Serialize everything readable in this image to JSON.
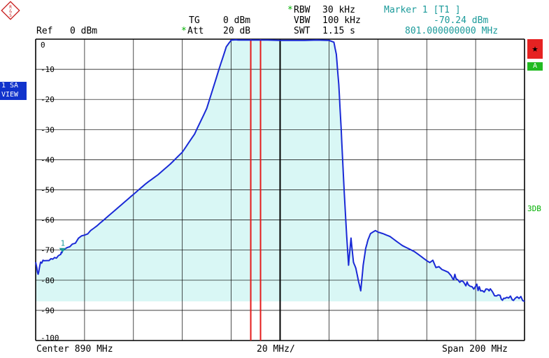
{
  "header": {
    "ref_label": "Ref",
    "ref_value": "0 dBm",
    "tg_label": "TG",
    "tg_value": "0 dBm",
    "att_label": "Att",
    "att_value": "20 dB",
    "rbw_label": "RBW",
    "rbw_value": "30 kHz",
    "vbw_label": "VBW",
    "vbw_value": "100 kHz",
    "swt_label": "SWT",
    "swt_value": "1.15 s",
    "marker_title": "Marker 1 [T1 ]",
    "marker_level": "-70.24 dBm",
    "marker_freq": "801.000000000 MHz"
  },
  "side": {
    "trace_line1": "1 SA",
    "trace_line2": "VIEW",
    "star_symbol": "★",
    "a_label": "A",
    "db3_label": "3DB"
  },
  "footer": {
    "center": "Center 890 MHz",
    "div": "20 MHz/",
    "span": "Span 200 MHz"
  },
  "colors": {
    "trace": "#1a2ad6",
    "fill": "#d9f7f5",
    "grid": "#000000",
    "limit_lines": "#e41b1b",
    "teal_text": "#1a9a9a",
    "green_text": "#00b000"
  },
  "chart_data": {
    "type": "line",
    "x_unit": "MHz",
    "y_unit": "dBm",
    "xlim": [
      790,
      990
    ],
    "ylim": [
      -100,
      0
    ],
    "ytick_labels": [
      "0",
      "-10",
      "-20",
      "-30",
      "-40",
      "-50",
      "-60",
      "-70",
      "-80",
      "-90",
      "-100"
    ],
    "grid": true,
    "vertical_lines_mhz": [
      878,
      882
    ],
    "marker": {
      "label": "1",
      "x": 801,
      "y": -70.24
    },
    "series": [
      {
        "x": [
          790,
          791,
          792,
          794,
          797,
          800,
          801,
          805,
          810,
          815,
          820,
          825,
          830,
          835,
          840,
          845,
          850,
          855,
          860,
          865,
          868,
          870,
          872,
          873,
          875,
          880,
          885,
          890,
          895,
          900,
          905,
          910,
          912,
          913,
          914,
          915,
          916,
          917,
          918,
          919,
          920,
          921,
          922,
          923,
          924,
          925,
          926,
          927,
          928,
          929,
          930,
          932,
          935,
          940,
          945,
          950,
          955,
          960,
          962,
          965,
          967,
          970,
          972,
          975,
          977,
          980,
          982,
          985,
          987,
          990
        ],
        "y": [
          -74,
          -78,
          -74,
          -73.5,
          -73,
          -71.5,
          -70.2,
          -68,
          -65,
          -62,
          -58.5,
          -55,
          -51.5,
          -48,
          -45,
          -41.5,
          -37.5,
          -31.5,
          -23,
          -10,
          -2.5,
          -0.3,
          -0.2,
          -0.3,
          -0.3,
          -0.3,
          -0.3,
          -0.4,
          -0.4,
          -0.4,
          -0.3,
          -0.4,
          -1,
          -5,
          -15,
          -30,
          -47,
          -62,
          -75,
          -66,
          -74,
          -76,
          -80,
          -83.5,
          -75,
          -69.5,
          -66.5,
          -64.5,
          -64,
          -63.5,
          -64,
          -64.5,
          -65.5,
          -68.5,
          -70.5,
          -73.5,
          -75.5,
          -78.5,
          -79.5,
          -80.5,
          -81.5,
          -82,
          -83.5,
          -83,
          -84,
          -85,
          -86,
          -86.5,
          -85.5,
          -87
        ]
      }
    ]
  }
}
